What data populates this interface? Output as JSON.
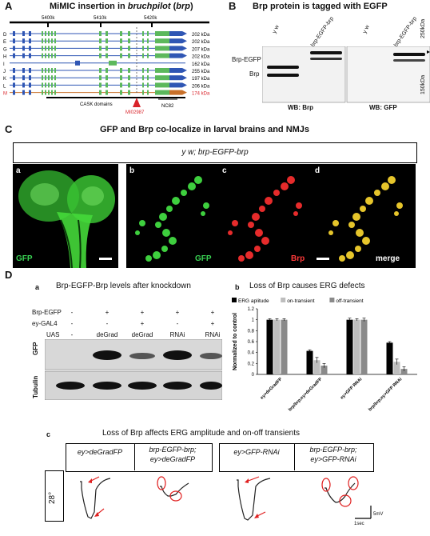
{
  "panelA": {
    "letter": "A",
    "title_prefix": "MiMIC insertion in ",
    "title_italic": "bruchpilot",
    "title_gene": " (",
    "title_gene_italic": "brp",
    "title_suffix": ")",
    "coords": [
      "5400k",
      "5410k",
      "5420k"
    ],
    "isoforms": [
      {
        "id": "D",
        "kda": "202 kDa",
        "highlight": false
      },
      {
        "id": "E",
        "kda": "202 kDa",
        "highlight": false
      },
      {
        "id": "G",
        "kda": "207 kDa",
        "highlight": false
      },
      {
        "id": "H",
        "kda": "202 kDa",
        "highlight": false
      },
      {
        "id": "I",
        "kda": "162 kDa",
        "highlight": false
      },
      {
        "id": "J",
        "kda": "255 kDa",
        "highlight": false
      },
      {
        "id": "K",
        "kda": "197 kDa",
        "highlight": false
      },
      {
        "id": "L",
        "kda": "206 kDa",
        "highlight": false
      },
      {
        "id": "M",
        "kda": "174 kDa",
        "highlight": true
      }
    ],
    "cask_label": "CASK domains",
    "mimic_label": "MI02987",
    "nc82_label": "NC82",
    "colors": {
      "exon_blue": "#2f56b4",
      "exon_green": "#5cb85c",
      "red": "#d9232a",
      "orange": "#c8702a"
    }
  },
  "panelB": {
    "letter": "B",
    "title": "Brp protein is tagged with EGFP",
    "lanes": [
      "y w",
      "brp-EGFP-brp",
      "y w",
      "brp-EGFP-brp"
    ],
    "label_brp_egfp": "Brp-EGFP",
    "label_brp": "Brp",
    "marker_250": "250kDa",
    "marker_150": "150kDa",
    "wb_left": "WB: Brp",
    "wb_right": "WB: GFP"
  },
  "panelC": {
    "letter": "C",
    "title": "GFP and Brp co-localize in larval brains and NMJs",
    "genotype": "y w; brp-EGFP-brp",
    "subpanels": [
      {
        "letter": "a",
        "label": "GFP",
        "color": "#39d353"
      },
      {
        "letter": "b",
        "label": "GFP",
        "color": "#39d353"
      },
      {
        "letter": "c",
        "label": "Brp",
        "color": "#ff3a3a"
      },
      {
        "letter": "d",
        "label": "merge",
        "color": "#ffffff"
      }
    ]
  },
  "panelD": {
    "letter": "D",
    "a": {
      "letter": "a",
      "title": "Brp-EGFP-Brp levels after knockdown",
      "row_labels": [
        "Brp-EGFP",
        "ey-GAL4",
        "UAS"
      ],
      "columns": [
        {
          "brp_egfp": "-",
          "ey_gal4": "-",
          "uas": "-"
        },
        {
          "brp_egfp": "+",
          "ey_gal4": "-",
          "uas": "deGrad"
        },
        {
          "brp_egfp": "+",
          "ey_gal4": "+",
          "uas": "deGrad"
        },
        {
          "brp_egfp": "+",
          "ey_gal4": "-",
          "uas": "RNAi"
        },
        {
          "brp_egfp": "+",
          "ey_gal4": "+",
          "uas": "RNAi"
        }
      ],
      "blot_labels": [
        "GFP",
        "Tubulin"
      ]
    },
    "b": {
      "letter": "b",
      "title": "Loss of Brp causes ERG defects"
    },
    "c": {
      "letter": "c",
      "title": "Loss of Brp affects ERG amplitude and on-off transients",
      "headers": [
        {
          "line1": "ey>deGradFP",
          "line2": ""
        },
        {
          "line1": "brp-EGFP-brp;",
          "line2": "ey>deGradFP"
        },
        {
          "line1": "ey>GFP-RNAi",
          "line2": ""
        },
        {
          "line1": "brp-EGFP-brp;",
          "line2": "ey>GFP-RNAi"
        }
      ],
      "row_label": "28°",
      "scale_v": "5mV",
      "scale_t": "1sec"
    }
  },
  "chart_data": {
    "type": "bar",
    "title": "Loss of Brp causes ERG defects",
    "ylabel": "Normalized to control",
    "ylim": [
      0,
      1.2
    ],
    "yticks": [
      "0",
      "0.2",
      "0.4",
      "0.6",
      "0.8",
      "1",
      "1.2"
    ],
    "categories": [
      "ey>deGradFP",
      "brp/brp;ey>deGradFP",
      "ey>GFP RNAi",
      "brp/brp;ey>GFP RNAi"
    ],
    "series": [
      {
        "name": "ERG aplitude",
        "color": "#000000",
        "values": [
          1.0,
          0.43,
          1.0,
          0.58
        ],
        "err": [
          0.02,
          0.02,
          0.03,
          0.02
        ]
      },
      {
        "name": "on-transient",
        "color": "#bdbdbd",
        "values": [
          1.0,
          0.26,
          1.0,
          0.23
        ],
        "err": [
          0.02,
          0.05,
          0.02,
          0.05
        ]
      },
      {
        "name": "off-transient",
        "color": "#8a8a8a",
        "values": [
          1.0,
          0.16,
          1.0,
          0.1
        ],
        "err": [
          0.02,
          0.04,
          0.03,
          0.04
        ]
      }
    ],
    "legend": "top"
  }
}
